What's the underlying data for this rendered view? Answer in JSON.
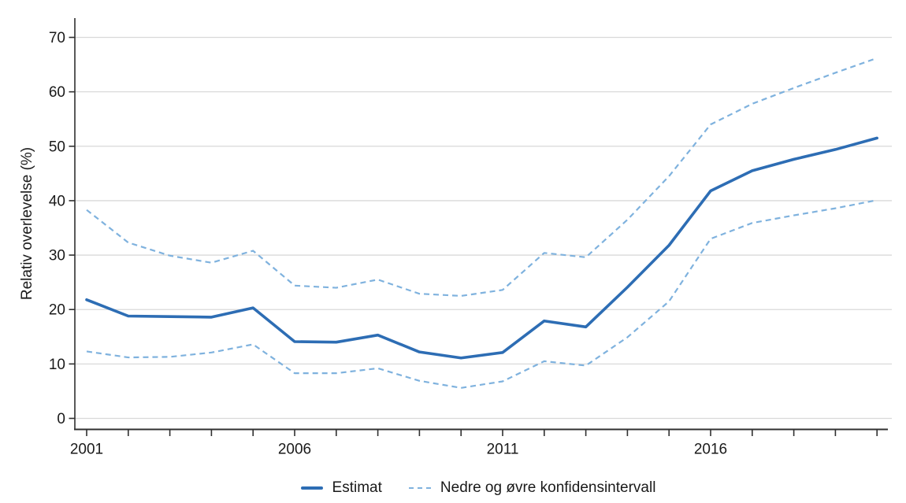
{
  "chart_data": {
    "type": "line",
    "title": "",
    "xlabel": "",
    "ylabel": "Relativ overlevelse (%)",
    "x": [
      2001,
      2002,
      2003,
      2004,
      2005,
      2006,
      2007,
      2008,
      2009,
      2010,
      2011,
      2012,
      2013,
      2014,
      2015,
      2016,
      2017,
      2018,
      2019,
      2020
    ],
    "x_axis_tick_labels": [
      "2001",
      "2006",
      "2011",
      "2016"
    ],
    "ylim": [
      0,
      70
    ],
    "yticks": [
      0,
      10,
      20,
      30,
      40,
      50,
      60,
      70
    ],
    "grid": "horizontal",
    "legend_position": "bottom",
    "series": [
      {
        "name": "Estimat",
        "line_style": "solid",
        "color": "#2d6db4",
        "values": [
          21.8,
          18.8,
          18.7,
          18.6,
          20.3,
          14.1,
          14.0,
          15.3,
          12.2,
          11.1,
          12.1,
          17.9,
          16.8,
          24.1,
          31.8,
          41.8,
          45.5,
          47.6,
          49.4,
          51.5
        ]
      },
      {
        "name": "Nedre konfidensintervall",
        "line_style": "dashed",
        "color": "#7fb2de",
        "values": [
          12.3,
          11.2,
          11.3,
          12.1,
          13.6,
          8.3,
          8.3,
          9.2,
          6.9,
          5.6,
          6.8,
          10.5,
          9.7,
          14.9,
          21.5,
          33.0,
          35.9,
          37.3,
          38.6,
          40.1
        ]
      },
      {
        "name": "Øvre konfidensintervall",
        "line_style": "dashed",
        "color": "#7fb2de",
        "values": [
          38.3,
          32.3,
          29.9,
          28.6,
          30.8,
          24.4,
          24.0,
          25.5,
          22.9,
          22.5,
          23.6,
          30.4,
          29.6,
          36.5,
          44.5,
          54.0,
          57.8,
          60.7,
          63.5,
          66.2
        ]
      }
    ]
  },
  "legend": {
    "estimat_label": "Estimat",
    "ci_label": "Nedre og øvre konfidensintervall"
  }
}
